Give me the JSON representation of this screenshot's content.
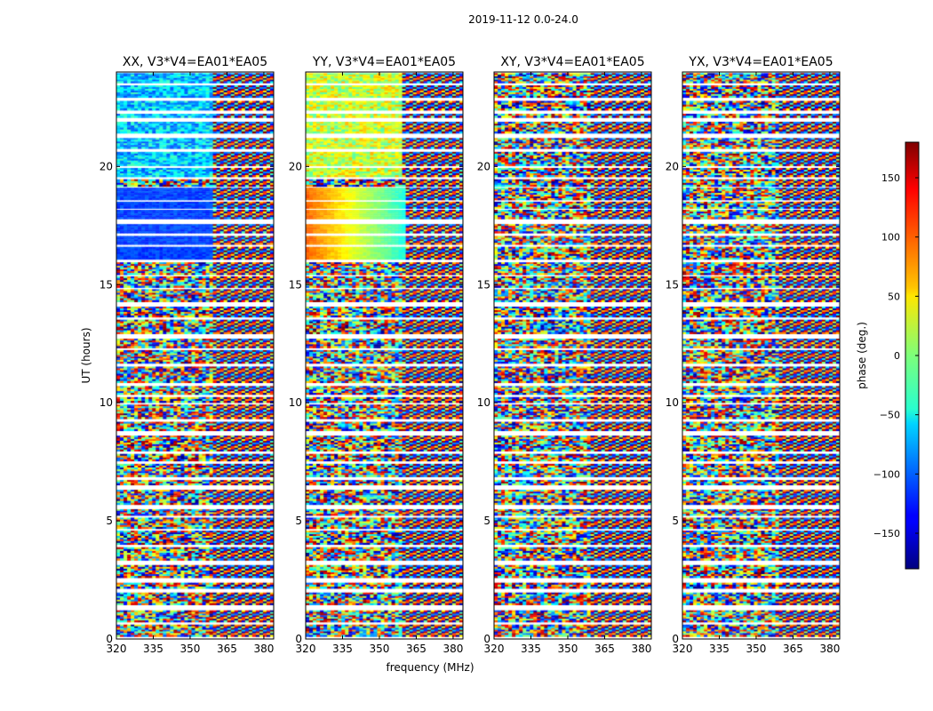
{
  "figure": {
    "suptitle": "2019-11-12 0.0-24.0",
    "xlabel": "frequency (MHz)",
    "ylabel": "UT (hours)"
  },
  "colorbar": {
    "label": "phase (deg.)",
    "range": [
      -180,
      180
    ],
    "ticks": [
      "150",
      "100",
      "50",
      "0",
      "−50",
      "−100",
      "−150"
    ],
    "tick_values": [
      150,
      100,
      50,
      0,
      -50,
      -100,
      -150
    ],
    "colormap": "jet"
  },
  "chart_data": {
    "type": "heatmap",
    "x_range": [
      320,
      384
    ],
    "y_range": [
      0,
      24
    ],
    "x_ticks": [
      "320",
      "335",
      "350",
      "365",
      "380"
    ],
    "x_tick_values": [
      320,
      335,
      350,
      365,
      380
    ],
    "y_ticks": [
      "0",
      "5",
      "10",
      "15",
      "20"
    ],
    "y_tick_values": [
      0,
      5,
      10,
      15,
      20
    ],
    "value_label": "phase (deg.)",
    "value_range": [
      -180,
      180
    ],
    "panels": [
      {
        "title": "XX, V3*V4=EA01*EA05"
      },
      {
        "title": "YY, V3*V4=EA01*EA05"
      },
      {
        "title": "XY, V3*V4=EA01*EA05"
      },
      {
        "title": "YX, V3*V4=EA01*EA05"
      }
    ]
  }
}
